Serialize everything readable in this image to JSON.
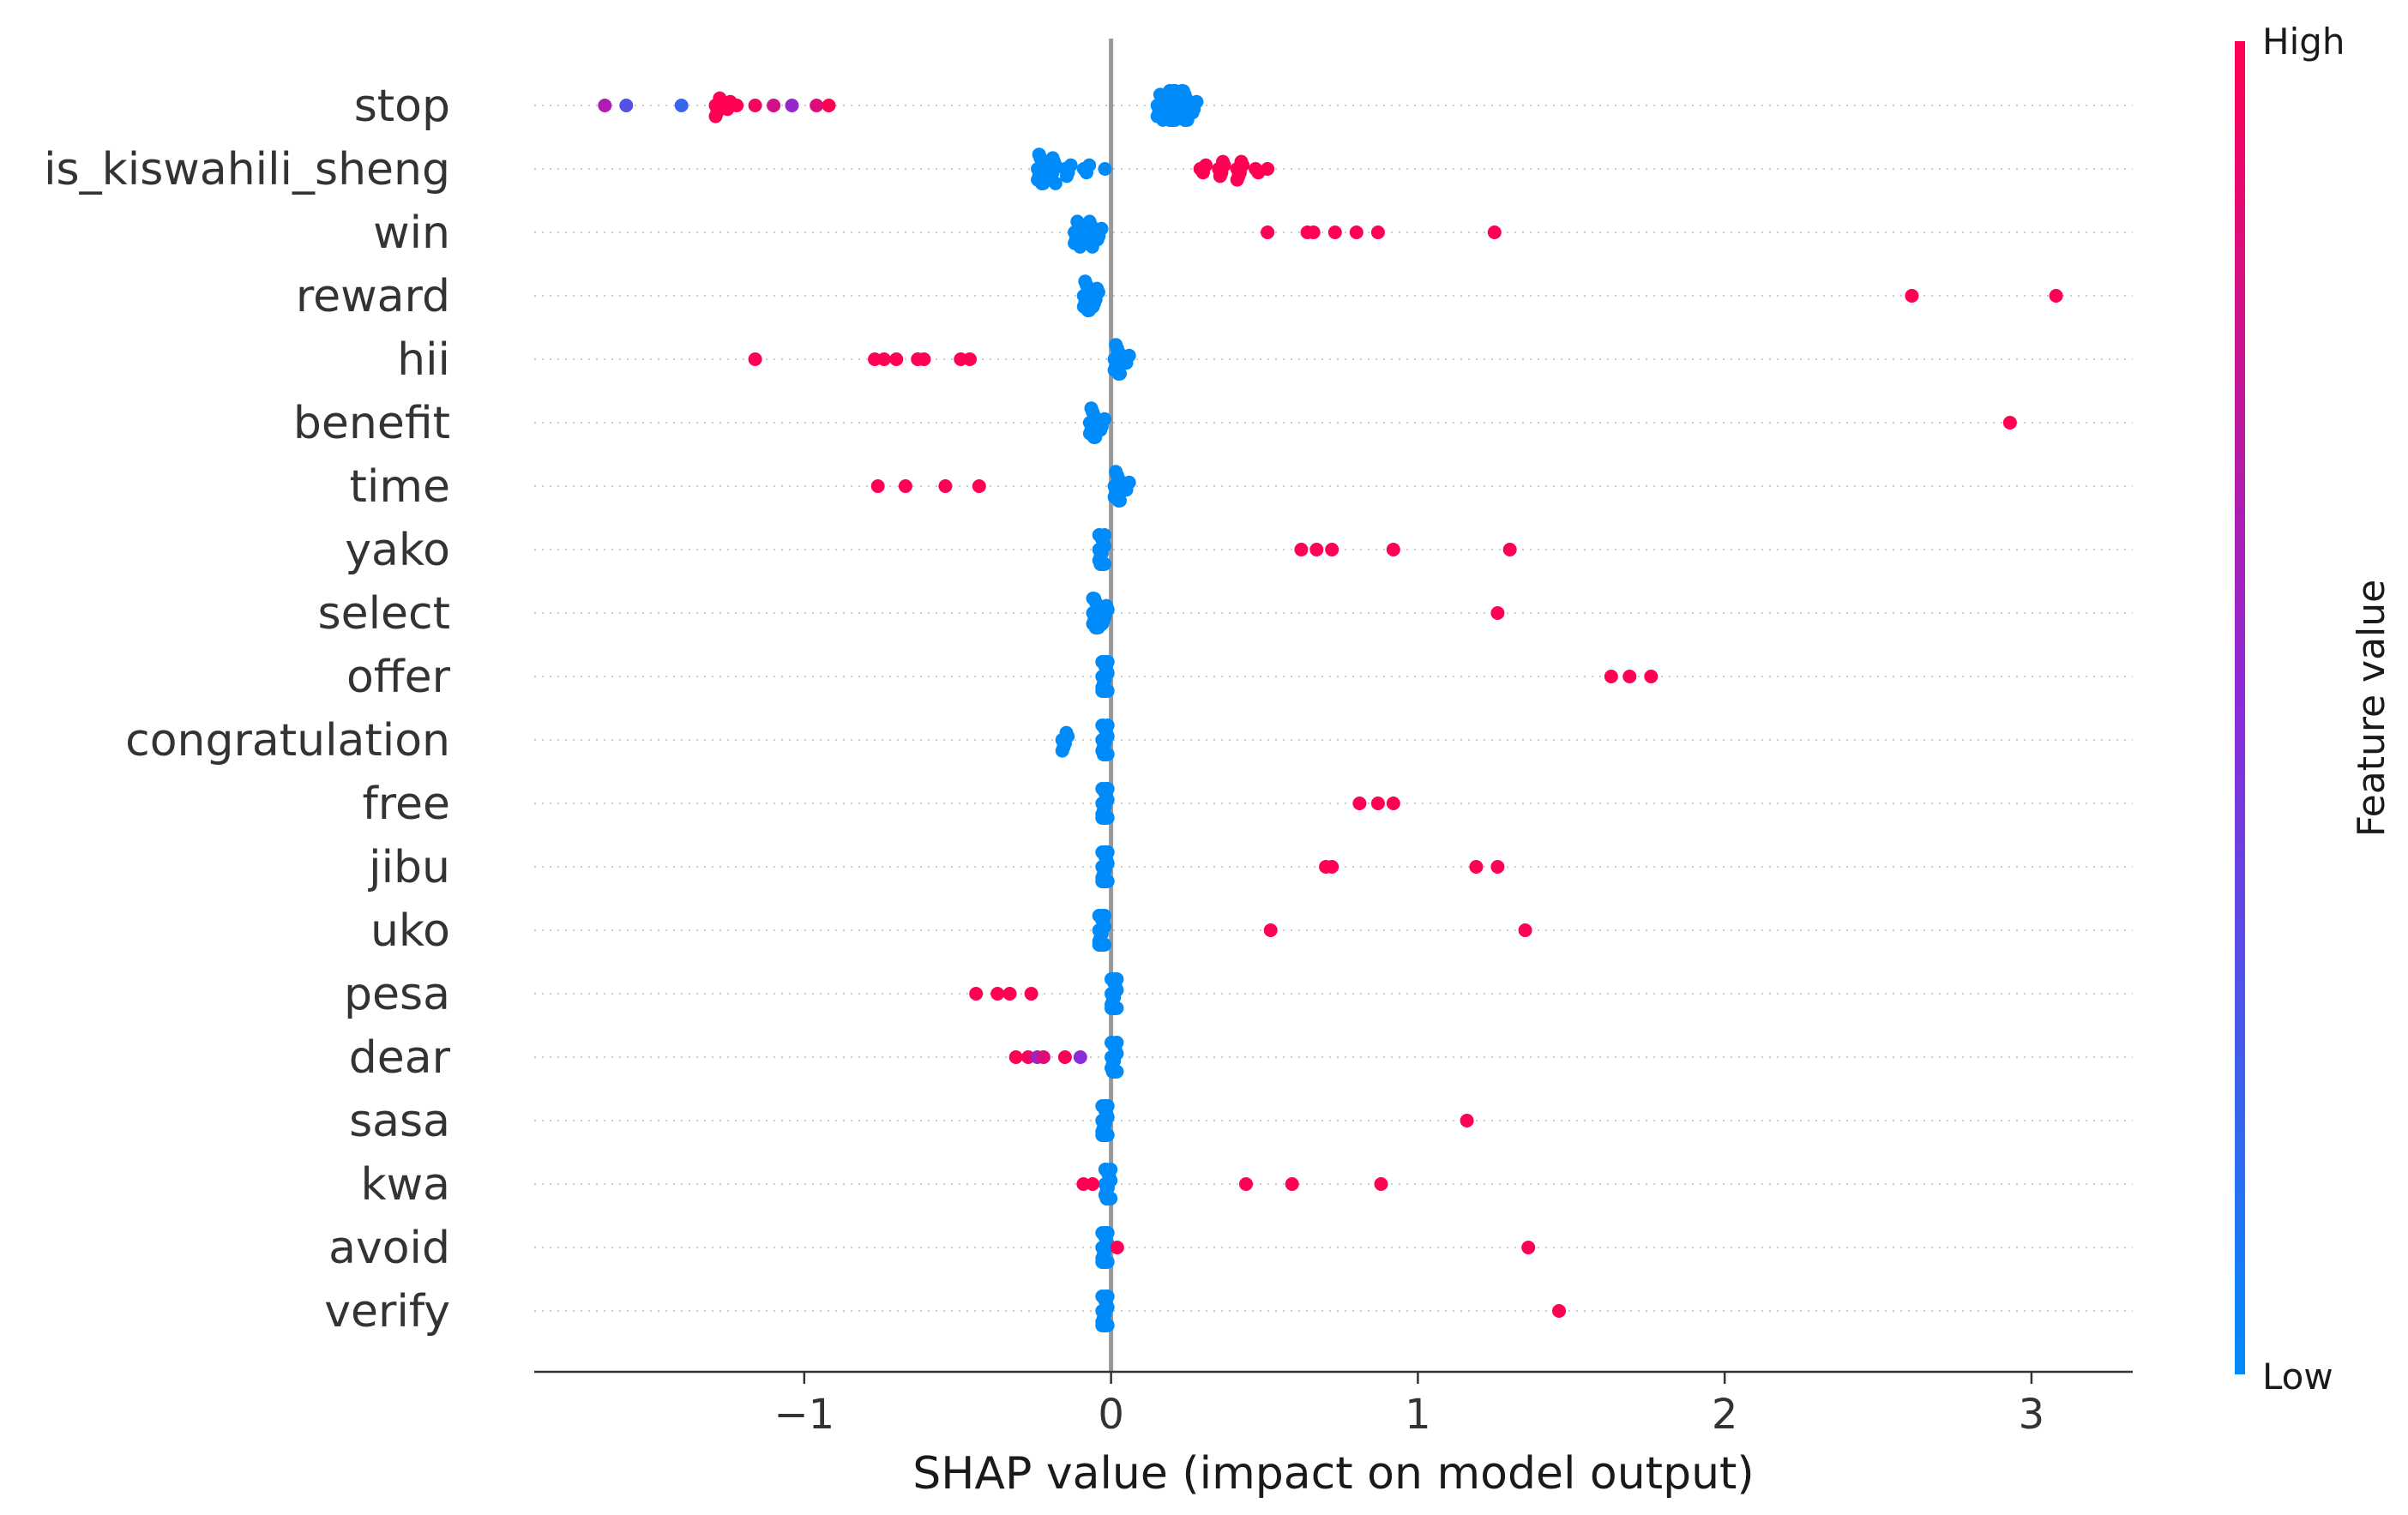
{
  "chart_data": {
    "type": "scatter",
    "subtype": "shap-beeswarm",
    "title": "",
    "xlabel": "SHAP value (impact on model output)",
    "ylabel": "",
    "xlim": [
      -1.88,
      3.33
    ],
    "x_ticks": [
      -1,
      0,
      1,
      2,
      3
    ],
    "x_tick_labels": [
      "−1",
      "0",
      "1",
      "2",
      "3"
    ],
    "grid": "dotted-horizontal",
    "colorbar": {
      "title": "Feature value",
      "high_label": "High",
      "low_label": "Low",
      "high_color": "#ff0052",
      "mid_color": "#8a2bd8",
      "low_color": "#008bfb"
    },
    "features": [
      {
        "name": "stop",
        "points": [
          {
            "x": 0.16,
            "c": 0.0,
            "n": 8
          },
          {
            "x": 0.2,
            "c": 0.0,
            "n": 16
          },
          {
            "x": 0.24,
            "c": 0.0,
            "n": 12
          },
          {
            "x": 0.27,
            "c": 0.0,
            "n": 4
          },
          {
            "x": -1.65,
            "c": 0.65
          },
          {
            "x": -1.58,
            "c": 0.3
          },
          {
            "x": -1.4,
            "c": 0.2
          },
          {
            "x": -1.28,
            "c": 1.0,
            "n": 6
          },
          {
            "x": -1.25,
            "c": 1.0,
            "n": 3
          },
          {
            "x": -1.22,
            "c": 1.0
          },
          {
            "x": -1.16,
            "c": 0.95
          },
          {
            "x": -1.1,
            "c": 0.8
          },
          {
            "x": -1.04,
            "c": 0.55
          },
          {
            "x": -0.96,
            "c": 0.85
          },
          {
            "x": -0.92,
            "c": 1.0
          }
        ]
      },
      {
        "name": "is_kiswahili_sheng",
        "points": [
          {
            "x": -0.23,
            "c": 0.0,
            "n": 10
          },
          {
            "x": -0.19,
            "c": 0.0,
            "n": 8
          },
          {
            "x": -0.14,
            "c": 0.0,
            "n": 4
          },
          {
            "x": -0.08,
            "c": 0.0,
            "n": 3
          },
          {
            "x": -0.02,
            "c": 0.0
          },
          {
            "x": 0.3,
            "c": 1.0,
            "n": 3
          },
          {
            "x": 0.36,
            "c": 1.0,
            "n": 5
          },
          {
            "x": 0.42,
            "c": 1.0,
            "n": 6
          },
          {
            "x": 0.48,
            "c": 1.0,
            "n": 2
          },
          {
            "x": 0.51,
            "c": 1.0
          }
        ]
      },
      {
        "name": "win",
        "points": [
          {
            "x": -0.11,
            "c": 0.0,
            "n": 8
          },
          {
            "x": -0.07,
            "c": 0.0,
            "n": 8
          },
          {
            "x": -0.04,
            "c": 0.0,
            "n": 4
          },
          {
            "x": 0.51,
            "c": 1.0
          },
          {
            "x": 0.64,
            "c": 1.0
          },
          {
            "x": 0.66,
            "c": 1.0
          },
          {
            "x": 0.73,
            "c": 1.0
          },
          {
            "x": 0.8,
            "c": 1.0
          },
          {
            "x": 0.87,
            "c": 1.0
          },
          {
            "x": 1.25,
            "c": 1.0
          }
        ]
      },
      {
        "name": "reward",
        "points": [
          {
            "x": -0.08,
            "c": 0.0,
            "n": 10
          },
          {
            "x": -0.05,
            "c": 0.0,
            "n": 6
          },
          {
            "x": 2.61,
            "c": 1.0
          },
          {
            "x": 3.08,
            "c": 1.0
          }
        ]
      },
      {
        "name": "hii",
        "points": [
          {
            "x": 0.02,
            "c": 0.0,
            "n": 10
          },
          {
            "x": 0.05,
            "c": 0.0,
            "n": 3
          },
          {
            "x": -1.16,
            "c": 1.0
          },
          {
            "x": -0.77,
            "c": 1.0
          },
          {
            "x": -0.74,
            "c": 1.0
          },
          {
            "x": -0.7,
            "c": 1.0
          },
          {
            "x": -0.63,
            "c": 1.0
          },
          {
            "x": -0.61,
            "c": 1.0
          },
          {
            "x": -0.49,
            "c": 1.0
          },
          {
            "x": -0.46,
            "c": 1.0
          }
        ]
      },
      {
        "name": "benefit",
        "points": [
          {
            "x": -0.06,
            "c": 0.0,
            "n": 10
          },
          {
            "x": -0.03,
            "c": 0.0,
            "n": 4
          },
          {
            "x": 2.93,
            "c": 1.0
          }
        ]
      },
      {
        "name": "time",
        "points": [
          {
            "x": 0.02,
            "c": 0.0,
            "n": 10
          },
          {
            "x": 0.05,
            "c": 0.0,
            "n": 3
          },
          {
            "x": -0.76,
            "c": 1.0
          },
          {
            "x": -0.67,
            "c": 1.0
          },
          {
            "x": -0.54,
            "c": 1.0
          },
          {
            "x": -0.43,
            "c": 1.0
          }
        ]
      },
      {
        "name": "yako",
        "points": [
          {
            "x": -0.03,
            "c": 0.0,
            "n": 14
          },
          {
            "x": 0.62,
            "c": 1.0
          },
          {
            "x": 0.67,
            "c": 1.0
          },
          {
            "x": 0.72,
            "c": 1.0
          },
          {
            "x": 0.92,
            "c": 1.0
          },
          {
            "x": 1.3,
            "c": 1.0
          }
        ]
      },
      {
        "name": "select",
        "points": [
          {
            "x": -0.05,
            "c": 0.0,
            "n": 12
          },
          {
            "x": -0.02,
            "c": 0.0,
            "n": 6
          },
          {
            "x": 1.26,
            "c": 1.0
          }
        ]
      },
      {
        "name": "offer",
        "points": [
          {
            "x": -0.02,
            "c": 0.0,
            "n": 16
          },
          {
            "x": 1.63,
            "c": 1.0
          },
          {
            "x": 1.69,
            "c": 1.0
          },
          {
            "x": 1.76,
            "c": 1.0
          }
        ]
      },
      {
        "name": "congratulation",
        "points": [
          {
            "x": -0.15,
            "c": 0.0,
            "n": 6
          },
          {
            "x": -0.02,
            "c": 0.0,
            "n": 14
          }
        ]
      },
      {
        "name": "free",
        "points": [
          {
            "x": -0.02,
            "c": 0.0,
            "n": 16
          },
          {
            "x": 0.81,
            "c": 1.0
          },
          {
            "x": 0.87,
            "c": 1.0
          },
          {
            "x": 0.92,
            "c": 1.0
          }
        ]
      },
      {
        "name": "jibu",
        "points": [
          {
            "x": -0.02,
            "c": 0.0,
            "n": 16
          },
          {
            "x": 0.7,
            "c": 1.0
          },
          {
            "x": 0.72,
            "c": 1.0
          },
          {
            "x": 1.19,
            "c": 1.0
          },
          {
            "x": 1.26,
            "c": 1.0
          }
        ]
      },
      {
        "name": "uko",
        "points": [
          {
            "x": -0.03,
            "c": 0.0,
            "n": 16
          },
          {
            "x": 0.52,
            "c": 1.0
          },
          {
            "x": 1.35,
            "c": 1.0
          }
        ]
      },
      {
        "name": "pesa",
        "points": [
          {
            "x": 0.01,
            "c": 0.0,
            "n": 16
          },
          {
            "x": -0.44,
            "c": 1.0
          },
          {
            "x": -0.37,
            "c": 1.0
          },
          {
            "x": -0.33,
            "c": 1.0
          },
          {
            "x": -0.26,
            "c": 1.0
          }
        ]
      },
      {
        "name": "dear",
        "points": [
          {
            "x": 0.01,
            "c": 0.0,
            "n": 14
          },
          {
            "x": -0.31,
            "c": 1.0
          },
          {
            "x": -0.27,
            "c": 0.95
          },
          {
            "x": -0.24,
            "c": 0.6
          },
          {
            "x": -0.22,
            "c": 0.85
          },
          {
            "x": -0.15,
            "c": 1.0
          },
          {
            "x": -0.1,
            "c": 0.5
          }
        ]
      },
      {
        "name": "sasa",
        "points": [
          {
            "x": -0.02,
            "c": 0.0,
            "n": 16
          },
          {
            "x": 1.16,
            "c": 1.0
          }
        ]
      },
      {
        "name": "kwa",
        "points": [
          {
            "x": -0.01,
            "c": 0.0,
            "n": 14
          },
          {
            "x": -0.09,
            "c": 1.0
          },
          {
            "x": -0.06,
            "c": 1.0
          },
          {
            "x": 0.44,
            "c": 1.0
          },
          {
            "x": 0.59,
            "c": 1.0
          },
          {
            "x": 0.88,
            "c": 1.0
          }
        ]
      },
      {
        "name": "avoid",
        "points": [
          {
            "x": -0.02,
            "c": 0.0,
            "n": 16
          },
          {
            "x": 0.02,
            "c": 1.0
          },
          {
            "x": 1.36,
            "c": 1.0
          }
        ]
      },
      {
        "name": "verify",
        "points": [
          {
            "x": -0.02,
            "c": 0.0,
            "n": 16
          },
          {
            "x": 1.46,
            "c": 1.0
          }
        ]
      }
    ]
  }
}
